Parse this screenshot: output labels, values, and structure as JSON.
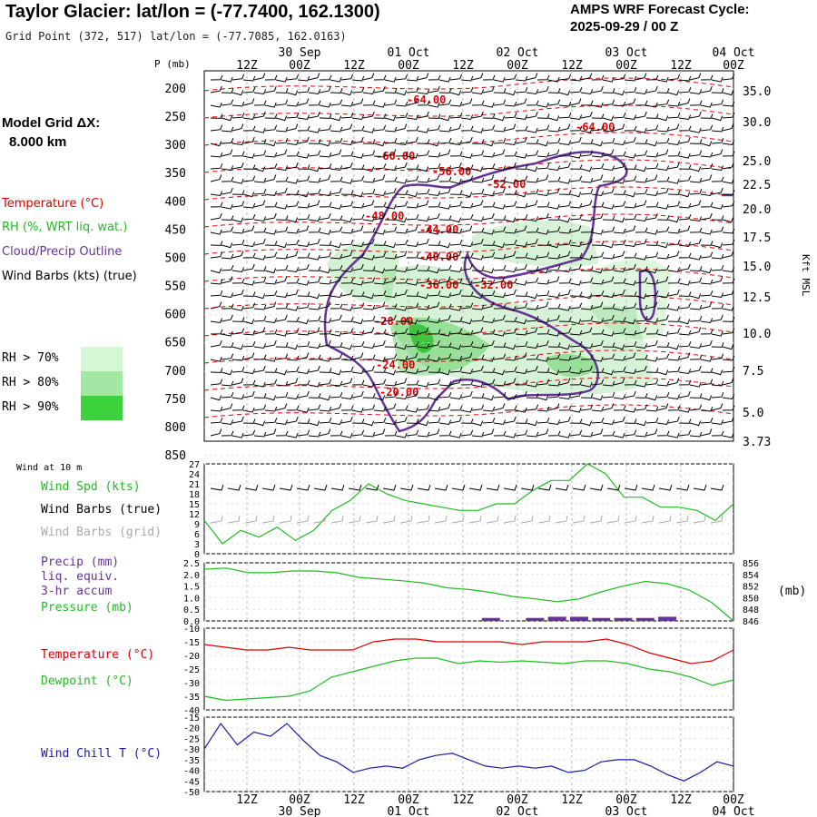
{
  "header": {
    "title": "Taylor Glacier:  lat/lon = (-77.7400, 162.1300)",
    "subtitle": "Grid Point (372, 517) lat/lon = (-77.7085, 162.0163)",
    "cycle_line1": "AMPS WRF Forecast Cycle:",
    "cycle_line2": "2025-09-29 / 00  Z",
    "grid_label": "Model Grid ΔX:",
    "grid_value": "8.000 km"
  },
  "legend": {
    "temperature": "Temperature (°C)",
    "rh": "RH (%, WRT liq. wat.)",
    "cloud": "Cloud/Precip Outline",
    "wind": "Wind Barbs (kts) (true)",
    "rh70": "RH > 70%",
    "rh80": "RH > 80%",
    "rh90": "RH > 90%",
    "rh70_color": "#d4f7d4",
    "rh80_color": "#a2e8a2",
    "rh90_color": "#3cd23c",
    "wind10_title": "Wind at 10 m",
    "wind_spd": "Wind Spd (kts)",
    "barbs_true": "Wind Barbs (true)",
    "barbs_grid": "Wind Barbs (grid)",
    "precip": "Precip (mm)",
    "liq_equiv": "liq. equiv.",
    "accum": "3-hr accum",
    "pressure": "Pressure (mb)",
    "pressure_unit": "(mb)",
    "temp2": "Temperature (°C)",
    "dewpoint": "Dewpoint (°C)",
    "windchill": "Wind Chill T (°C)"
  },
  "colors": {
    "temp": "#dd0000",
    "green": "#22bb22",
    "purple": "#663399",
    "blue": "#1a1aa6",
    "black": "#000000",
    "gray": "#aaaaaa"
  },
  "chart_data": [
    {
      "type": "line",
      "title": "Vertical cross-section (time-height)",
      "x_ticks": [
        "12Z",
        "00Z",
        "12Z",
        "00Z",
        "12Z",
        "00Z",
        "12Z",
        "00Z",
        "12Z",
        "00Z"
      ],
      "date_labels": [
        "30 Sep",
        "01 Oct",
        "02 Oct",
        "03 Oct",
        "04 Oct"
      ],
      "y_axis_label": "P (mb)",
      "y_ticks": [
        "200",
        "250",
        "300",
        "350",
        "400",
        "450",
        "500",
        "550",
        "600",
        "650",
        "700",
        "750",
        "800",
        "850"
      ],
      "ylim": [
        200,
        850
      ],
      "right_axis_label": "Kft MSL",
      "right_ticks": [
        "35.0",
        "30.0",
        "25.0",
        "22.5",
        "20.0",
        "17.5",
        "15.0",
        "12.5",
        "10.0",
        "7.5",
        "5.0",
        "3.73"
      ],
      "temp_labels": [
        "-64.00",
        "-64.00",
        "-60.00",
        "-56.00",
        "-52.00",
        "-48.00",
        "-44.00",
        "-40.00",
        "-36.00",
        "-32.00",
        "-28.00",
        "-24.00",
        "-20.00"
      ]
    },
    {
      "type": "line",
      "title": "Wind at 10 m",
      "series": [
        {
          "name": "Wind Spd (kts)",
          "values": [
            10,
            3,
            7,
            5,
            8,
            4,
            7,
            13,
            16,
            21,
            18,
            16,
            15,
            14,
            13,
            13,
            15,
            15,
            19,
            22,
            22,
            27,
            24,
            17,
            17,
            14,
            14,
            13,
            10,
            15
          ]
        }
      ],
      "y_ticks": [
        "27",
        "24",
        "21",
        "18",
        "15",
        "12",
        "9",
        "6",
        "3",
        "0"
      ],
      "ylim": [
        0,
        27
      ]
    },
    {
      "type": "line",
      "title": "Precip and Pressure",
      "series": [
        {
          "name": "Pressure (mb)",
          "values": [
            854.9,
            855.1,
            854.3,
            854.3,
            854.6,
            854.6,
            854.3,
            853.5,
            853.2,
            852.9,
            852.5,
            851.7,
            851.4,
            850.9,
            850.2,
            849.8,
            849.3,
            849.8,
            851.0,
            852.0,
            852.8,
            852.4,
            851.3,
            849.2,
            846.0
          ]
        },
        {
          "name": "Precip (mm)",
          "values": [
            0,
            0,
            0,
            0,
            0,
            0,
            0,
            0,
            0,
            0,
            0,
            0,
            0,
            0.05,
            0,
            0.05,
            0.1,
            0.1,
            0.05,
            0.05,
            0.05,
            0.1,
            0,
            0,
            0
          ]
        }
      ],
      "left_ticks": [
        "2.5",
        "2.0",
        "1.5",
        "1.0",
        "0.5",
        "0.0"
      ],
      "right_ticks": [
        "856",
        "854",
        "852",
        "850",
        "848",
        "846"
      ]
    },
    {
      "type": "line",
      "title": "Temperature / Dewpoint",
      "series": [
        {
          "name": "Temperature (°C)",
          "values": [
            -16,
            -17,
            -18,
            -18,
            -17,
            -18,
            -18,
            -18,
            -15,
            -14,
            -14,
            -15,
            -15,
            -15,
            -15,
            -16,
            -15,
            -15,
            -15,
            -14,
            -16,
            -19,
            -21,
            -23,
            -22,
            -18
          ]
        },
        {
          "name": "Dewpoint (°C)",
          "values": [
            -35,
            -36.5,
            -36,
            -35.5,
            -35,
            -33,
            -28,
            -26,
            -24,
            -22,
            -21,
            -21,
            -23,
            -22,
            -22.5,
            -22,
            -22.5,
            -23,
            -22,
            -22,
            -23,
            -25,
            -26,
            -28,
            -31,
            -29
          ]
        }
      ],
      "y_ticks": [
        "-10",
        "-15",
        "-20",
        "-25",
        "-30",
        "-35",
        "-40"
      ],
      "ylim": [
        -40,
        -10
      ]
    },
    {
      "type": "line",
      "title": "Wind Chill",
      "series": [
        {
          "name": "Wind Chill T (°C)",
          "values": [
            -30,
            -18,
            -28,
            -22,
            -24,
            -18,
            -26,
            -33,
            -36,
            -41,
            -39,
            -38,
            -39,
            -35,
            -33,
            -32,
            -35,
            -38,
            -39,
            -38,
            -39,
            -38,
            -41,
            -40,
            -36,
            -35,
            -35,
            -38,
            -42,
            -45,
            -41,
            -36,
            -38
          ]
        }
      ],
      "y_ticks": [
        "-15",
        "-20",
        "-25",
        "-30",
        "-35",
        "-40",
        "-45",
        "-50"
      ],
      "ylim": [
        -50,
        -15
      ]
    }
  ]
}
